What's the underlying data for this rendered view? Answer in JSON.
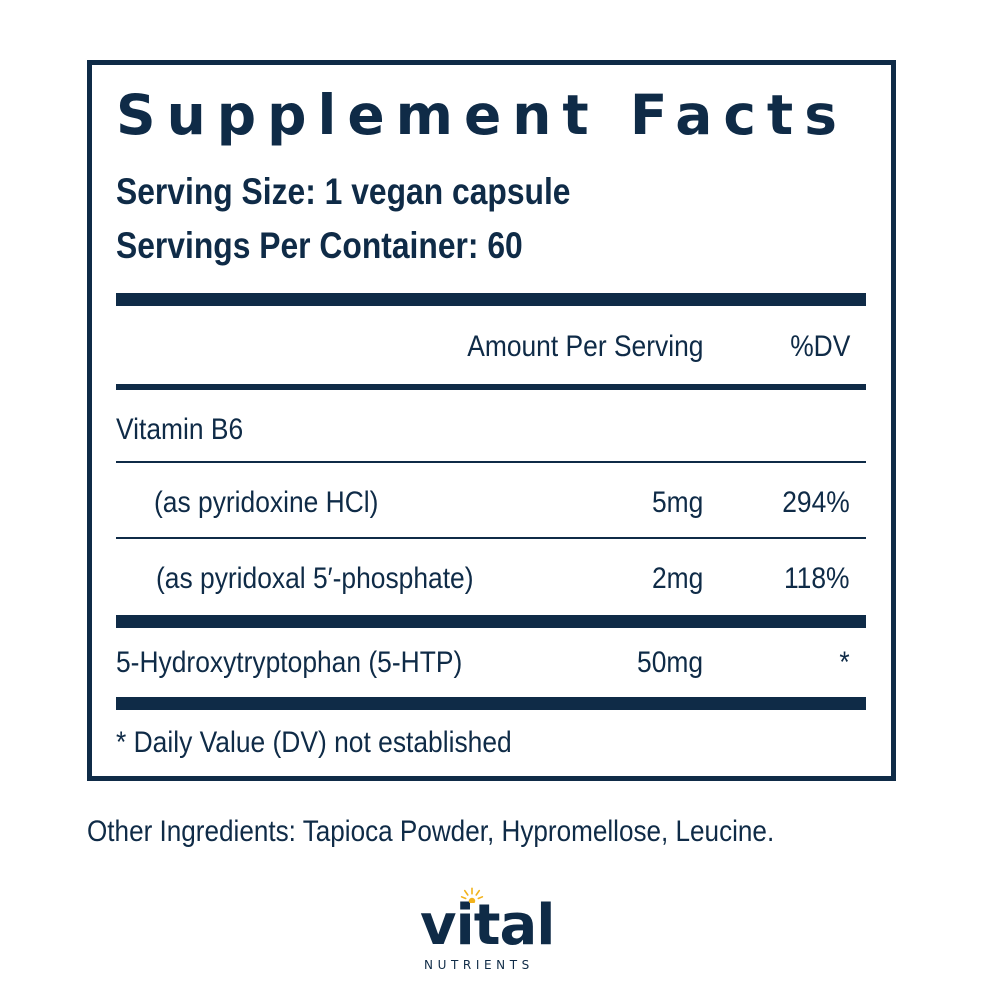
{
  "title": "Supplement Facts",
  "serving_size": "Serving Size: 1 vegan capsule",
  "servings_per_container": "Servings Per Container: 60",
  "header": {
    "amount_per_serving": "Amount Per Serving",
    "dv": "%DV"
  },
  "rows": [
    {
      "name": "Vitamin B6",
      "amount": "",
      "dv": ""
    },
    {
      "name": "(as pyridoxine HCl)",
      "amount": "5mg",
      "dv": "294%"
    },
    {
      "name": "(as pyridoxal 5′-phosphate)",
      "amount": "2mg",
      "dv": "118%"
    },
    {
      "name": "5-Hydroxytryptophan (5-HTP)",
      "amount": "50mg",
      "dv": "*"
    }
  ],
  "footnote": "* Daily Value (DV) not established",
  "other_ingredients": "Other Ingredients: Tapioca Powder, Hypromellose, Leucine.",
  "brand": {
    "name": "vital",
    "sub": "NUTRIENTS",
    "sun_icon": "sun-icon",
    "primary_color": "#0f2b47",
    "accent_color": "#f2b21b"
  }
}
